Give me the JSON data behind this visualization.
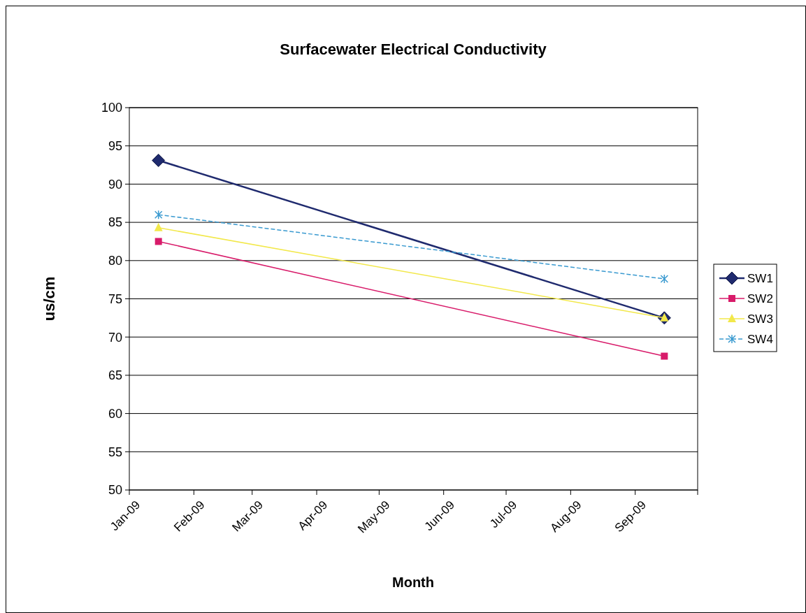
{
  "chart_data": {
    "type": "line",
    "title": "Surfacewater Electrical Conductivity",
    "xlabel": "Month",
    "ylabel": "us/cm",
    "x": [
      "2009-01-15",
      "2009-09-15"
    ],
    "series": [
      {
        "name": "SW1",
        "color": "#1f2a6e",
        "values": [
          93.1,
          72.5
        ],
        "marker": "diamond",
        "line_style": "solid"
      },
      {
        "name": "SW2",
        "color": "#d81b6a",
        "values": [
          82.5,
          67.5
        ],
        "marker": "square",
        "line_style": "solid"
      },
      {
        "name": "SW3",
        "color": "#f2e84a",
        "values": [
          84.3,
          72.5
        ],
        "marker": "triangle",
        "line_style": "solid"
      },
      {
        "name": "SW4",
        "color": "#3a9ad0",
        "values": [
          86,
          77.6
        ],
        "marker": "cross",
        "line_style": "dashed"
      }
    ],
    "xlim": [
      "2009-01-01",
      "2009-10-01"
    ],
    "xticks": [
      {
        "value": "2009-01-01",
        "label": "Jan-09"
      },
      {
        "value": "2009-02-01",
        "label": "Feb-09"
      },
      {
        "value": "2009-03-01",
        "label": "Mar-09"
      },
      {
        "value": "2009-04-01",
        "label": "Apr-09"
      },
      {
        "value": "2009-05-01",
        "label": "May-09"
      },
      {
        "value": "2009-06-01",
        "label": "Jun-09"
      },
      {
        "value": "2009-07-01",
        "label": "Jul-09"
      },
      {
        "value": "2009-08-01",
        "label": "Aug-09"
      },
      {
        "value": "2009-09-01",
        "label": "Sep-09"
      },
      {
        "value": "2009-10-01",
        "label": null
      }
    ],
    "ylim": [
      50,
      100
    ],
    "yticks": [
      50,
      55,
      60,
      65,
      70,
      75,
      80,
      85,
      90,
      95,
      100
    ],
    "grid": "y",
    "legend": "right"
  }
}
